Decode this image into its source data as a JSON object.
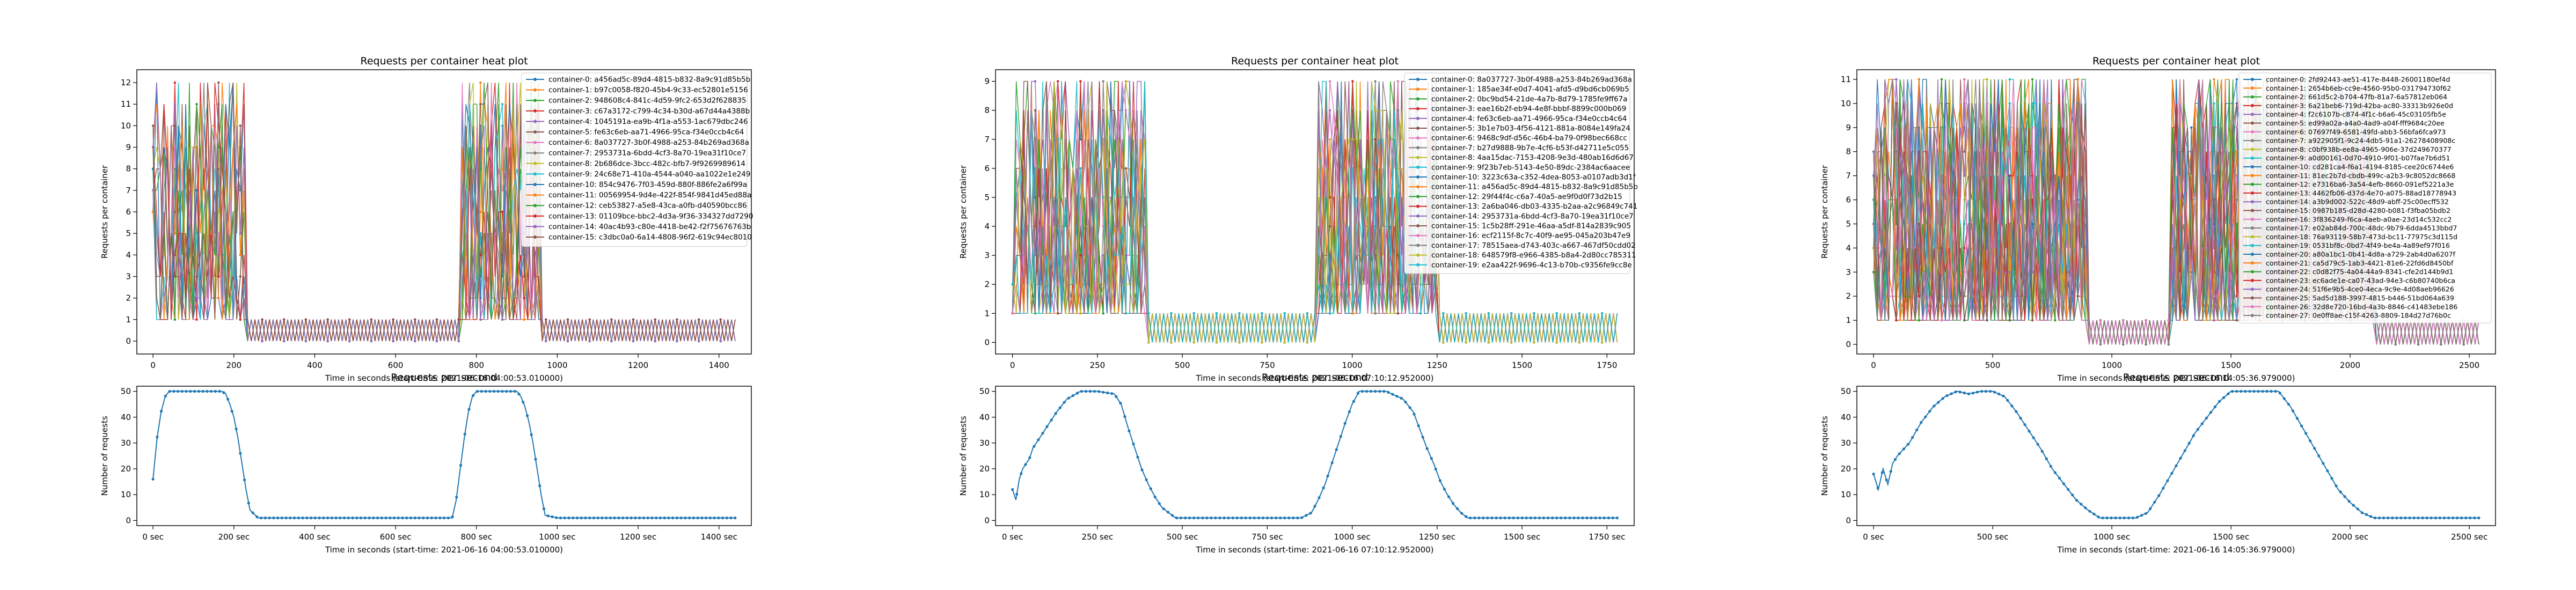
{
  "figure": {
    "columns": [
      {
        "heatmap": {
          "title": "Requests per container heat plot",
          "ylabel": "Requests per container",
          "xlabel": "Time in seconds (start-time: 2021-06-16 04:00:53.010000)",
          "containers": [
            "container-0: a456ad5c-89d4-4815-b832-8a9c91d85b5b",
            "container-1: b97c0058-f820-45b4-9c33-ec52801e5156",
            "container-2: 948608c4-841c-4d59-9fc2-653d2f628835",
            "container-3: c67a3172-c799-4c34-b30d-a67d44a4388b",
            "container-4: 1045191a-ea9b-4f1a-a553-1ac679dbc246",
            "container-5: fe63c6eb-aa71-4966-95ca-f34e0ccb4c64",
            "container-6: 8a037727-3b0f-4988-a253-84b269ad368a",
            "container-7: 2953731a-6bdd-4cf3-8a70-19ea31f10ce7",
            "container-8: 2b686dce-3bcc-482c-bfb7-9f9269989614",
            "container-9: 24c68e71-410a-4544-a040-aa1022e1e249",
            "container-10: 854c9476-7f03-459d-880f-886fe2a6f99a",
            "container-11: 00569954-9d4e-422f-854f-9841d45ed88a",
            "container-12: ceb53827-a5e8-43ca-a0fb-d40590bcc86",
            "container-13: 01109bce-bbc2-4d3a-9f36-334327dd7290",
            "container-14: 40ac4b93-c80e-4418-be42-f2f75676763b",
            "container-15: c3dbc0a0-6a14-4808-96f2-619c94ec8010"
          ]
        },
        "rps": {
          "title": "Requests per second",
          "ylabel": "Number of requests",
          "xlabel": "Time in seconds (start-time: 2021-06-16 04:00:53.010000)"
        }
      },
      {
        "heatmap": {
          "title": "Requests per container heat plot",
          "ylabel": "Requests per container",
          "xlabel": "Time in seconds (start-time: 2021-06-16 07:10:12.952000)",
          "containers": [
            "container-0: 8a037727-3b0f-4988-a253-84b269ad368a",
            "container-1: 185ae34f-e0d7-4041-afd5-d9bd6cb069b5",
            "container-2: 0bc9bd54-21de-4a7b-8d79-1785fe9ff67a",
            "container-3: eae16b2f-eb94-4e8f-bbbf-8899c000b069",
            "container-4: fe63c6eb-aa71-4966-95ca-f34e0ccb4c64",
            "container-5: 3b1e7b03-4f56-4121-881a-8084e149fa24",
            "container-6: 9468c9df-d56c-46b4-ba79-0f98bec668cc",
            "container-7: b27d9888-9b7e-4cf6-b53f-d42711e5c055",
            "container-8: 4aa15dac-7153-4208-9e3d-480ab16d6d67",
            "container-9: 9f23b7eb-5143-4e50-89dc-2384ac6aacee",
            "container-10: 3223c63a-c352-4dea-8053-a0107adb3d1f",
            "container-11: a456ad5c-89d4-4815-b832-8a9c91d85b5b",
            "container-12: 29f44f4c-c6a7-40a5-ae9f0d0f73d2b15",
            "container-13: 2a6ba046-db03-4335-b2aa-a2c96849c741",
            "container-14: 2953731a-6bdd-4cf3-8a70-19ea31f10ce7",
            "container-15: 1c5b28ff-291e-46aa-a5df-814a2839c905",
            "container-16: ecf2115f-8c7c-40f9-ae95-045a203b47e9",
            "container-17: 78515aea-d743-403c-a667-467df50cdd02",
            "container-18: 648579f8-e966-4385-b8a4-2d80cc785311",
            "container-19: e2aa422f-9696-4c13-b70b-c9356fe9cc8e"
          ]
        },
        "rps": {
          "title": "Requests per second",
          "ylabel": "Number of requests",
          "xlabel": "Time in seconds (start-time: 2021-06-16 07:10:12.952000)"
        }
      },
      {
        "heatmap": {
          "title": "Requests per container heat plot",
          "ylabel": "Requests per container",
          "xlabel": "Time in seconds (start-time: 2021-06-16 14:05:36.979000)",
          "containers": [
            "container-0: 2fd92443-ae51-417e-8448-26001180ef4d",
            "container-1: 2654b6eb-cc9e-4560-95b0-031794730f62",
            "container-2: 661d5c2-b704-47fb-81a7-6a57812eb064",
            "container-3: 6a21beb6-719d-42ba-ac80-33313b926e0d",
            "container-4: f2c6107b-c874-4f1c-b6a6-45c03105fb5e",
            "container-5: ed99a02a-a4a0-4ad9-a04f-fff9684c20ee",
            "container-6: 07697f49-6581-49fd-abb3-56bfa6fca973",
            "container-7: a922905f1-9c24-4db5-91a1-26278408908c",
            "container-8: c0bf938b-ee8a-4965-906e-37d249670377",
            "container-9: a0d00161-0d70-4910-9f01-b07fae7b6d51",
            "container-10: cd281ca4-f6a1-4194-8185-cee20c6744e6",
            "container-11: 81ec2b7d-cbdb-499c-a2b3-9c8052dc8668",
            "container-12: e7316ba6-3a54-4efb-8660-091ef5221a3e",
            "container-13: 4462fb06-d37d-4e70-a075-88ad18778943",
            "container-14: a3b9d002-522c-48d9-abff-25c00ecff532",
            "container-15: 0987b185-d28d-4280-b081-f3fba05bdb2",
            "container-16: 3f836249-f6ca-4aeb-a0ae-23d14c532cc2",
            "container-17: e02ab84d-700c-48dc-9b79-6dda4513bbd7",
            "container-18: 76a93119-58b7-473d-bc11-77975c3d115d",
            "container-19: 0531bf8c-0bd7-4f49-be4a-4a89ef97f016",
            "container-20: a80a1bc1-0b41-4d8a-a729-2ab4d0a6207f",
            "container-21: ca5d79c5-1ab3-4421-81e6-22fd6d8450bf",
            "container-22: c0d82f75-4a04-44a9-8341-cfe2d144b9d1",
            "container-23: ec6ade1e-ca07-43ad-94e3-c6b80740b6ca",
            "container-24: 51f6e9b5-4ce0-4eca-9c9e-4d08aeb96626",
            "container-25: 5ad5d188-3997-4815-b446-51bd064a639",
            "container-26: 32d8e720-16bd-4a3b-8846-c41483ebe186",
            "container-27: 0e0ff8ae-c15f-4263-8809-184d27d76b0c"
          ]
        },
        "rps": {
          "title": "Requests per second",
          "ylabel": "Number of requests",
          "xlabel": "Time in seconds (start-time: 2021-06-16 14:05:36.979000)"
        }
      }
    ],
    "palette": [
      "#1f77b4",
      "#ff7f0e",
      "#2ca02c",
      "#d62728",
      "#9467bd",
      "#8c564b",
      "#e377c2",
      "#7f7f7f",
      "#bcbd22",
      "#17becf"
    ]
  },
  "chart_data": [
    {
      "type": "line",
      "title": "Requests per container heat plot",
      "xlabel": "Time in seconds (start-time: 2021-06-16 04:00:53.010000)",
      "ylabel": "Requests per container",
      "xlim": [
        -40,
        1480
      ],
      "ylim": [
        -0.6,
        12.6
      ],
      "xticks": [
        0,
        200,
        400,
        600,
        800,
        1000,
        1200,
        1400
      ],
      "yticks": [
        0,
        1,
        2,
        3,
        4,
        5,
        6,
        7,
        8,
        9,
        10,
        11,
        12
      ],
      "series_count": 16,
      "description": "Each container line holds 1-12 requests while a burst is active (about 0-230 s and 760-960 s) and alternates between 0 and 1 otherwise.",
      "active_windows": [
        [
          0,
          230
        ],
        [
          760,
          960
        ]
      ],
      "duration": 1440,
      "active_range": [
        1,
        12
      ],
      "idle_values": [
        0,
        1
      ],
      "legend": "top-right"
    },
    {
      "type": "line",
      "title": "Requests per second",
      "xlabel": "Time in seconds (start-time: 2021-06-16 04:00:53.010000)",
      "ylabel": "Number of requests",
      "xlim": [
        -40,
        1480
      ],
      "ylim": [
        -2,
        52
      ],
      "xticks": [
        0,
        200,
        400,
        600,
        800,
        1000,
        1200,
        1400
      ],
      "xticklabels": [
        "0 sec",
        "200 sec",
        "400 sec",
        "600 sec",
        "800 sec",
        "1000 sec",
        "1200 sec",
        "1400 sec"
      ],
      "yticks": [
        0,
        10,
        20,
        30,
        40,
        50
      ],
      "x": [
        0,
        10,
        20,
        30,
        40,
        50,
        100,
        150,
        170,
        180,
        190,
        200,
        210,
        220,
        230,
        240,
        260,
        400,
        600,
        740,
        750,
        760,
        770,
        780,
        790,
        800,
        850,
        900,
        910,
        920,
        930,
        940,
        950,
        960,
        970,
        1000,
        1200,
        1440
      ],
      "y": [
        16,
        32,
        42,
        48,
        50,
        50,
        50,
        50,
        50,
        49,
        45,
        40,
        32,
        22,
        12,
        4,
        1,
        1,
        1,
        1,
        8,
        20,
        32,
        42,
        48,
        50,
        50,
        50,
        48,
        44,
        38,
        30,
        20,
        10,
        2,
        1,
        1,
        1
      ],
      "markers": true
    },
    {
      "type": "line",
      "title": "Requests per container heat plot",
      "xlabel": "Time in seconds (start-time: 2021-06-16 07:10:12.952000)",
      "ylabel": "Requests per container",
      "xlim": [
        -50,
        1830
      ],
      "ylim": [
        -0.4,
        9.4
      ],
      "xticks": [
        0,
        250,
        500,
        750,
        1000,
        1250,
        1500,
        1750
      ],
      "yticks": [
        0,
        1,
        2,
        3,
        4,
        5,
        6,
        7,
        8,
        9
      ],
      "series_count": 20,
      "description": "Each container line holds 1-9 requests while a burst is active (about 0-390 s and 900-1250 s) and alternates between 0 and 1 otherwise.",
      "active_windows": [
        [
          0,
          390
        ],
        [
          900,
          1250
        ]
      ],
      "duration": 1780,
      "active_range": [
        1,
        9
      ],
      "idle_values": [
        0,
        1
      ],
      "legend": "top-right"
    },
    {
      "type": "line",
      "title": "Requests per second",
      "xlabel": "Time in seconds (start-time: 2021-06-16 07:10:12.952000)",
      "ylabel": "Number of requests",
      "xlim": [
        -50,
        1830
      ],
      "ylim": [
        -2,
        52
      ],
      "xticks": [
        0,
        250,
        500,
        750,
        1000,
        1250,
        1500,
        1750
      ],
      "xticklabels": [
        "0 sec",
        "250 sec",
        "500 sec",
        "750 sec",
        "1000 sec",
        "1250 sec",
        "1500 sec",
        "1750 sec"
      ],
      "yticks": [
        0,
        10,
        20,
        30,
        40,
        50
      ],
      "x": [
        0,
        10,
        20,
        30,
        40,
        50,
        60,
        80,
        100,
        130,
        160,
        200,
        250,
        300,
        320,
        340,
        360,
        380,
        400,
        420,
        440,
        460,
        480,
        500,
        700,
        850,
        880,
        900,
        920,
        940,
        960,
        980,
        1000,
        1020,
        1050,
        1100,
        1150,
        1180,
        1200,
        1220,
        1240,
        1260,
        1280,
        1300,
        1320,
        1340,
        1360,
        1500,
        1780
      ],
      "y": [
        12,
        8,
        16,
        20,
        22,
        24,
        28,
        32,
        36,
        42,
        47,
        50,
        50,
        49,
        45,
        36,
        28,
        20,
        14,
        9,
        5,
        3,
        1,
        1,
        1,
        1,
        3,
        8,
        14,
        22,
        30,
        38,
        45,
        50,
        50,
        50,
        47,
        42,
        35,
        28,
        22,
        15,
        10,
        6,
        3,
        1,
        1,
        1,
        1
      ],
      "markers": true
    },
    {
      "type": "line",
      "title": "Requests per container heat plot",
      "xlabel": "Time in seconds (start-time: 2021-06-16 14:05:36.979000)",
      "ylabel": "Requests per container",
      "xlim": [
        -70,
        2610
      ],
      "ylim": [
        -0.4,
        11.4
      ],
      "xticks": [
        0,
        500,
        1000,
        1500,
        2000,
        2500
      ],
      "yticks": [
        0,
        1,
        2,
        3,
        4,
        5,
        6,
        7,
        8,
        9,
        10,
        11
      ],
      "series_count": 28,
      "description": "Each container line holds 1-11 requests while a burst is active (about 0-900 s and 1250-2100 s) and alternates between 0 and 1 otherwise.",
      "active_windows": [
        [
          0,
          900
        ],
        [
          1250,
          2100
        ]
      ],
      "duration": 2540,
      "active_range": [
        1,
        11
      ],
      "idle_values": [
        0,
        1
      ],
      "legend": "top-right"
    },
    {
      "type": "line",
      "title": "Requests per second",
      "xlabel": "Time in seconds (start-time: 2021-06-16 14:05:36.979000)",
      "ylabel": "Number of requests",
      "xlim": [
        -70,
        2610
      ],
      "ylim": [
        -2,
        52
      ],
      "xticks": [
        0,
        500,
        1000,
        1500,
        2000,
        2500
      ],
      "xticklabels": [
        "0 sec",
        "500 sec",
        "1000 sec",
        "1500 sec",
        "2000 sec",
        "2500 sec"
      ],
      "yticks": [
        0,
        10,
        20,
        30,
        40,
        50
      ],
      "x": [
        0,
        20,
        40,
        60,
        80,
        100,
        150,
        200,
        250,
        300,
        350,
        400,
        450,
        500,
        550,
        600,
        650,
        700,
        750,
        800,
        850,
        900,
        950,
        1000,
        1050,
        1100,
        1150,
        1200,
        1250,
        1300,
        1350,
        1400,
        1450,
        1500,
        1550,
        1600,
        1650,
        1700,
        1750,
        1800,
        1850,
        1900,
        1950,
        2000,
        2050,
        2100,
        2150,
        2540
      ],
      "y": [
        18,
        12,
        20,
        14,
        22,
        25,
        30,
        38,
        44,
        48,
        50,
        49,
        50,
        50,
        48,
        42,
        35,
        28,
        20,
        14,
        8,
        4,
        1,
        1,
        1,
        1,
        3,
        10,
        18,
        26,
        34,
        40,
        46,
        50,
        50,
        50,
        50,
        50,
        44,
        36,
        28,
        20,
        12,
        7,
        3,
        1,
        1,
        1
      ],
      "markers": true
    }
  ]
}
